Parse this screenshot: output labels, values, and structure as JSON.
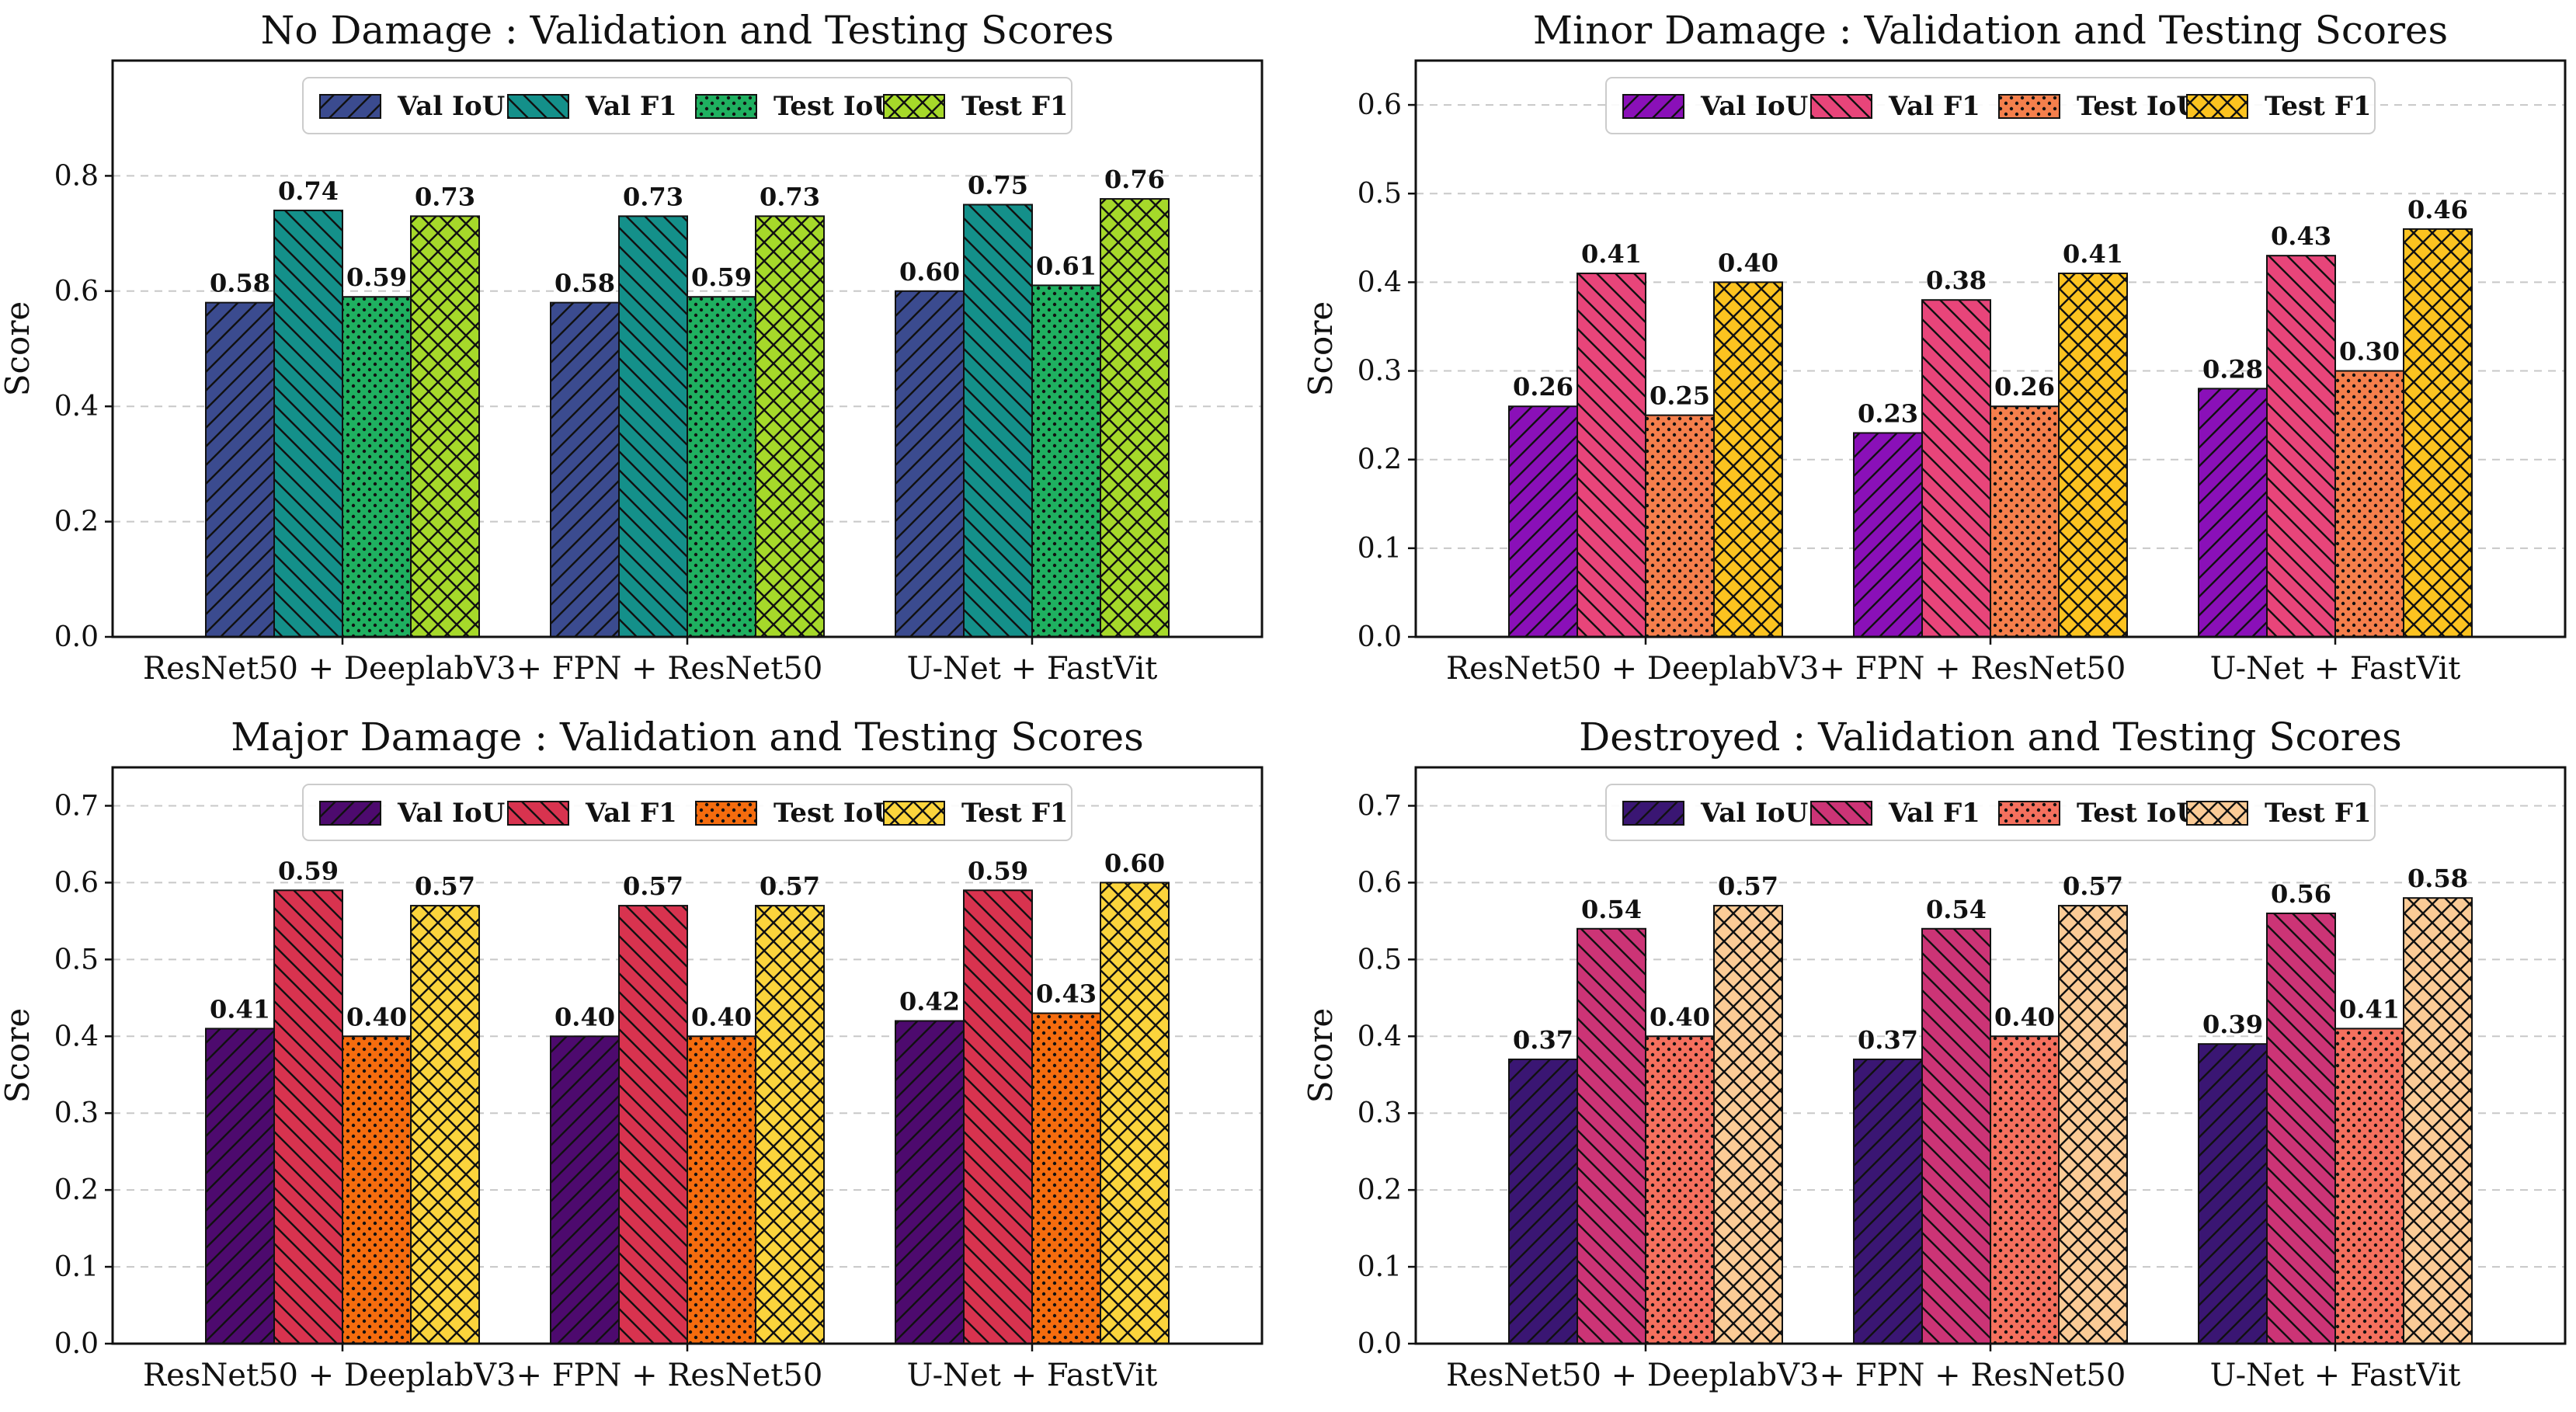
{
  "chart_data": [
    {
      "type": "bar",
      "title": "No Damage : Validation and Testing Scores",
      "xlabel": "",
      "ylabel": "Score",
      "ylim": [
        0,
        1.0
      ],
      "yticks": [
        "0.0",
        "0.2",
        "0.4",
        "0.6",
        "0.8"
      ],
      "yticks_values": [
        0,
        0.2,
        0.4,
        0.6,
        0.8
      ],
      "categories": [
        "ResNet50 + DeeplabV3+",
        "FPN + ResNet50",
        "U-Net + FastVit"
      ],
      "legend": "top",
      "series": [
        {
          "name": "Val IoU",
          "color": "#3b4b8f",
          "pattern": "diag-fwd",
          "values": [
            0.58,
            0.58,
            0.6
          ],
          "labels": [
            "0.58",
            "0.58",
            "0.60"
          ]
        },
        {
          "name": "Val F1",
          "color": "#14908a",
          "pattern": "diag-back",
          "values": [
            0.74,
            0.73,
            0.75
          ],
          "labels": [
            "0.74",
            "0.73",
            "0.75"
          ]
        },
        {
          "name": "Test IoU",
          "color": "#1fb060",
          "pattern": "dots",
          "values": [
            0.59,
            0.59,
            0.61
          ],
          "labels": [
            "0.59",
            "0.59",
            "0.61"
          ]
        },
        {
          "name": "Test F1",
          "color": "#a6d92a",
          "pattern": "cross",
          "values": [
            0.73,
            0.73,
            0.76
          ],
          "labels": [
            "0.73",
            "0.73",
            "0.76"
          ]
        }
      ]
    },
    {
      "type": "bar",
      "title": "Minor Damage : Validation and Testing Scores",
      "xlabel": "",
      "ylabel": "Score",
      "ylim": [
        0,
        0.65
      ],
      "yticks": [
        "0.0",
        "0.1",
        "0.2",
        "0.3",
        "0.4",
        "0.5",
        "0.6"
      ],
      "yticks_values": [
        0,
        0.1,
        0.2,
        0.3,
        0.4,
        0.5,
        0.6
      ],
      "categories": [
        "ResNet50 + DeeplabV3+",
        "FPN + ResNet50",
        "U-Net + FastVit"
      ],
      "legend": "top",
      "series": [
        {
          "name": "Val IoU",
          "color": "#8a10b8",
          "pattern": "diag-fwd",
          "values": [
            0.26,
            0.23,
            0.28
          ],
          "labels": [
            "0.26",
            "0.23",
            "0.28"
          ]
        },
        {
          "name": "Val F1",
          "color": "#e8457a",
          "pattern": "diag-back",
          "values": [
            0.41,
            0.38,
            0.43
          ],
          "labels": [
            "0.41",
            "0.38",
            "0.43"
          ]
        },
        {
          "name": "Test IoU",
          "color": "#f57f4c",
          "pattern": "dots",
          "values": [
            0.25,
            0.26,
            0.3
          ],
          "labels": [
            "0.25",
            "0.26",
            "0.30"
          ]
        },
        {
          "name": "Test F1",
          "color": "#fcc320",
          "pattern": "cross",
          "values": [
            0.4,
            0.41,
            0.46
          ],
          "labels": [
            "0.40",
            "0.41",
            "0.46"
          ]
        }
      ]
    },
    {
      "type": "bar",
      "title": "Major Damage : Validation and Testing Scores",
      "xlabel": "",
      "ylabel": "Score",
      "ylim": [
        0,
        0.75
      ],
      "yticks": [
        "0.0",
        "0.1",
        "0.2",
        "0.3",
        "0.4",
        "0.5",
        "0.6",
        "0.7"
      ],
      "yticks_values": [
        0,
        0.1,
        0.2,
        0.3,
        0.4,
        0.5,
        0.6,
        0.7
      ],
      "categories": [
        "ResNet50 + DeeplabV3+",
        "FPN + ResNet50",
        "U-Net + FastVit"
      ],
      "legend": "top",
      "series": [
        {
          "name": "Val IoU",
          "color": "#4d0a6e",
          "pattern": "diag-fwd",
          "values": [
            0.41,
            0.4,
            0.42
          ],
          "labels": [
            "0.41",
            "0.40",
            "0.42"
          ]
        },
        {
          "name": "Val F1",
          "color": "#d8334f",
          "pattern": "diag-back",
          "values": [
            0.59,
            0.57,
            0.59
          ],
          "labels": [
            "0.59",
            "0.57",
            "0.59"
          ]
        },
        {
          "name": "Test IoU",
          "color": "#f56c0e",
          "pattern": "dots",
          "values": [
            0.4,
            0.4,
            0.43
          ],
          "labels": [
            "0.40",
            "0.40",
            "0.43"
          ]
        },
        {
          "name": "Test F1",
          "color": "#fbd43c",
          "pattern": "cross",
          "values": [
            0.57,
            0.57,
            0.6
          ],
          "labels": [
            "0.57",
            "0.57",
            "0.60"
          ]
        }
      ]
    },
    {
      "type": "bar",
      "title": "Destroyed : Validation and Testing Scores",
      "xlabel": "",
      "ylabel": "Score",
      "ylim": [
        0,
        0.75
      ],
      "yticks": [
        "0.0",
        "0.1",
        "0.2",
        "0.3",
        "0.4",
        "0.5",
        "0.6",
        "0.7"
      ],
      "yticks_values": [
        0,
        0.1,
        0.2,
        0.3,
        0.4,
        0.5,
        0.6,
        0.7
      ],
      "categories": [
        "ResNet50 + DeeplabV3+",
        "FPN + ResNet50",
        "U-Net + FastVit"
      ],
      "legend": "top",
      "series": [
        {
          "name": "Val IoU",
          "color": "#3a1673",
          "pattern": "diag-fwd",
          "values": [
            0.37,
            0.37,
            0.39
          ],
          "labels": [
            "0.37",
            "0.37",
            "0.39"
          ]
        },
        {
          "name": "Val F1",
          "color": "#cc3476",
          "pattern": "diag-back",
          "values": [
            0.54,
            0.54,
            0.56
          ],
          "labels": [
            "0.54",
            "0.54",
            "0.56"
          ]
        },
        {
          "name": "Test IoU",
          "color": "#f5705e",
          "pattern": "dots",
          "values": [
            0.4,
            0.4,
            0.41
          ],
          "labels": [
            "0.40",
            "0.40",
            "0.41"
          ]
        },
        {
          "name": "Test F1",
          "color": "#fbcb96",
          "pattern": "cross",
          "values": [
            0.57,
            0.57,
            0.58
          ],
          "labels": [
            "0.57",
            "0.57",
            "0.58"
          ]
        }
      ]
    }
  ]
}
